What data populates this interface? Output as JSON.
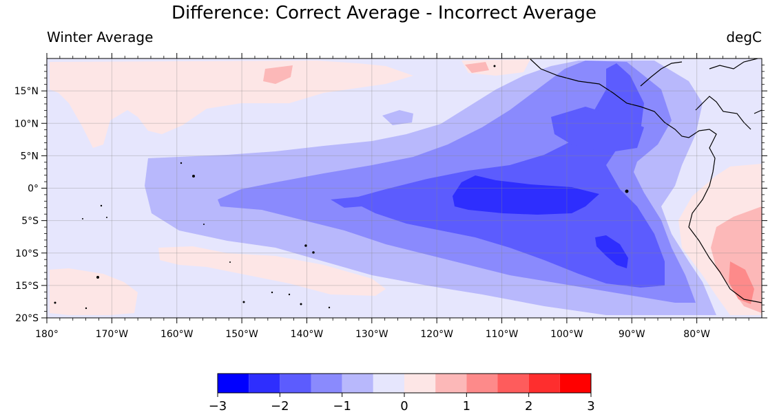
{
  "chart_data": {
    "type": "heatmap",
    "title": "Difference: Correct Average - Incorrect Average",
    "subtitle_left": "Winter Average",
    "subtitle_right": "degC",
    "x_range": [
      -180,
      -70
    ],
    "y_range": [
      -20,
      20
    ],
    "x_tick_values": [
      -180,
      -170,
      -160,
      -150,
      -140,
      -130,
      -120,
      -110,
      -100,
      -90,
      -80
    ],
    "x_tick_labels": [
      "180°",
      "170°W",
      "160°W",
      "150°W",
      "140°W",
      "130°W",
      "120°W",
      "110°W",
      "100°W",
      "90°W",
      "80°W"
    ],
    "y_tick_values": [
      -20,
      -15,
      -10,
      -5,
      0,
      5,
      10,
      15
    ],
    "y_tick_labels": [
      "20°S",
      "15°S",
      "10°S",
      "5°S",
      "0°",
      "5°N",
      "10°N",
      "15°N"
    ],
    "grid": true,
    "colorbar": {
      "levels": [
        -3,
        -2.5,
        -2,
        -1.5,
        -1,
        -0.5,
        0,
        0.5,
        1,
        1.5,
        2,
        2.5,
        3
      ],
      "colors": [
        "#0000ff",
        "#2e2efe",
        "#5c5cfe",
        "#8a8afd",
        "#b8b8fc",
        "#e6e6fd",
        "#fde6e6",
        "#fcb8b8",
        "#fd8a8a",
        "#fe5c5c",
        "#fe2e2e",
        "#ff0000"
      ],
      "tick_values": [
        -3,
        -2,
        -1,
        0,
        1,
        2,
        3
      ],
      "tick_labels": [
        "−3",
        "−2",
        "−1",
        "0",
        "1",
        "2",
        "3"
      ]
    }
  }
}
